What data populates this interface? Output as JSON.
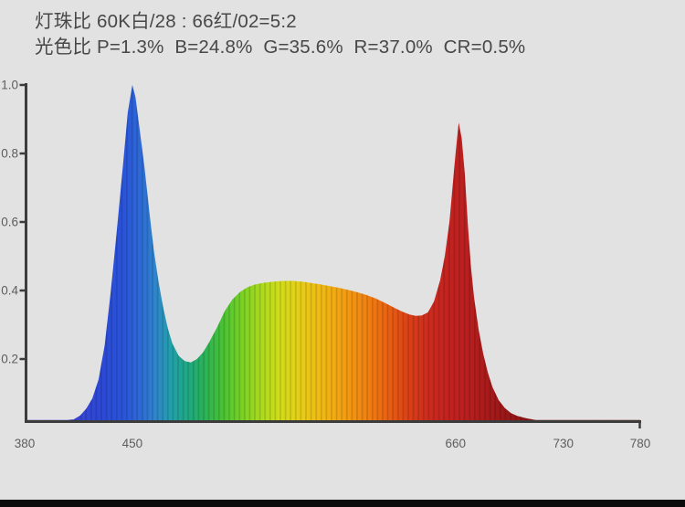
{
  "window": {
    "background": "#e2e2e2",
    "bottom_bar_color": "#0b0b0b"
  },
  "header": {
    "line1": "灯珠比 60K白/28 : 66红/02=5:2",
    "line2": "光色比 P=1.3%  B=24.8%  G=35.6%  R=37.0%  CR=0.5%",
    "text_color": "#474747"
  },
  "chart_data": {
    "type": "area",
    "description": "LED spectral power distribution, relative intensity vs wavelength (nm)",
    "xlim": [
      380,
      780
    ],
    "ylim": [
      0,
      1.0
    ],
    "grid": false,
    "legend": null,
    "x_tick_values": [
      380,
      450,
      660,
      730,
      780
    ],
    "x_tick_labels": [
      "380",
      "450",
      "660",
      "730",
      "780"
    ],
    "y_tick_values": [
      1.0,
      0.8,
      0.6,
      0.4,
      0.2
    ],
    "y_tick_labels": [
      "1.0",
      "0.8",
      "0.6",
      "0.4",
      "0.2"
    ],
    "axis_color": "#3c3c3c",
    "tick_label_color": "#5d5d5d",
    "points": [
      [
        380,
        0.004
      ],
      [
        386,
        0.006
      ],
      [
        392,
        0.01
      ],
      [
        396,
        0.014
      ],
      [
        400,
        0.017
      ],
      [
        404,
        0.019
      ],
      [
        408,
        0.02
      ],
      [
        412,
        0.024
      ],
      [
        416,
        0.035
      ],
      [
        420,
        0.055
      ],
      [
        424,
        0.085
      ],
      [
        428,
        0.14
      ],
      [
        432,
        0.24
      ],
      [
        436,
        0.4
      ],
      [
        440,
        0.58
      ],
      [
        444,
        0.77
      ],
      [
        447,
        0.92
      ],
      [
        450,
        1.0
      ],
      [
        452,
        0.965
      ],
      [
        455,
        0.86
      ],
      [
        458,
        0.755
      ],
      [
        461,
        0.63
      ],
      [
        464,
        0.515
      ],
      [
        467,
        0.425
      ],
      [
        470,
        0.35
      ],
      [
        473,
        0.29
      ],
      [
        476,
        0.245
      ],
      [
        480,
        0.21
      ],
      [
        484,
        0.194
      ],
      [
        488,
        0.19
      ],
      [
        492,
        0.2
      ],
      [
        496,
        0.22
      ],
      [
        500,
        0.25
      ],
      [
        505,
        0.292
      ],
      [
        510,
        0.34
      ],
      [
        515,
        0.374
      ],
      [
        520,
        0.396
      ],
      [
        525,
        0.41
      ],
      [
        530,
        0.418
      ],
      [
        536,
        0.423
      ],
      [
        542,
        0.426
      ],
      [
        548,
        0.428
      ],
      [
        554,
        0.428
      ],
      [
        560,
        0.426
      ],
      [
        566,
        0.422
      ],
      [
        572,
        0.418
      ],
      [
        578,
        0.413
      ],
      [
        584,
        0.408
      ],
      [
        590,
        0.402
      ],
      [
        596,
        0.395
      ],
      [
        602,
        0.387
      ],
      [
        608,
        0.377
      ],
      [
        614,
        0.364
      ],
      [
        620,
        0.35
      ],
      [
        625,
        0.339
      ],
      [
        630,
        0.33
      ],
      [
        634,
        0.326
      ],
      [
        638,
        0.327
      ],
      [
        642,
        0.336
      ],
      [
        646,
        0.368
      ],
      [
        650,
        0.43
      ],
      [
        653,
        0.5
      ],
      [
        656,
        0.6
      ],
      [
        658,
        0.7
      ],
      [
        660,
        0.8
      ],
      [
        662,
        0.89
      ],
      [
        664,
        0.845
      ],
      [
        666,
        0.74
      ],
      [
        668,
        0.59
      ],
      [
        670,
        0.47
      ],
      [
        672,
        0.38
      ],
      [
        675,
        0.285
      ],
      [
        678,
        0.215
      ],
      [
        681,
        0.16
      ],
      [
        684,
        0.118
      ],
      [
        688,
        0.08
      ],
      [
        692,
        0.057
      ],
      [
        696,
        0.042
      ],
      [
        700,
        0.034
      ],
      [
        706,
        0.027
      ],
      [
        712,
        0.022
      ],
      [
        718,
        0.018
      ],
      [
        724,
        0.015
      ],
      [
        730,
        0.013
      ],
      [
        740,
        0.011
      ],
      [
        750,
        0.009
      ],
      [
        760,
        0.008
      ],
      [
        770,
        0.007
      ],
      [
        780,
        0.006
      ]
    ],
    "spectral_gradient": [
      [
        380,
        "#4a3ab8"
      ],
      [
        405,
        "#3f3fce"
      ],
      [
        430,
        "#2c49d6"
      ],
      [
        445,
        "#2a55d9"
      ],
      [
        455,
        "#2e6ad6"
      ],
      [
        465,
        "#2f85cc"
      ],
      [
        475,
        "#22a0ab"
      ],
      [
        487,
        "#1fa97f"
      ],
      [
        497,
        "#2bb257"
      ],
      [
        508,
        "#47c136"
      ],
      [
        520,
        "#74d026"
      ],
      [
        533,
        "#a8da1e"
      ],
      [
        545,
        "#cfdc1a"
      ],
      [
        558,
        "#e5cf18"
      ],
      [
        570,
        "#eebd15"
      ],
      [
        582,
        "#f2a913"
      ],
      [
        594,
        "#f29212"
      ],
      [
        606,
        "#ef7911"
      ],
      [
        618,
        "#e75c12"
      ],
      [
        630,
        "#da3f18"
      ],
      [
        641,
        "#cd2d1d"
      ],
      [
        652,
        "#c52420"
      ],
      [
        664,
        "#bd2020"
      ],
      [
        676,
        "#ae1c1c"
      ],
      [
        690,
        "#9d1818"
      ],
      [
        705,
        "#8e1515"
      ],
      [
        725,
        "#801313"
      ],
      [
        750,
        "#741111"
      ],
      [
        780,
        "#6a1010"
      ]
    ],
    "stripe": {
      "period": 5.6,
      "line_width": 1.7,
      "opacity": 0.13
    }
  }
}
